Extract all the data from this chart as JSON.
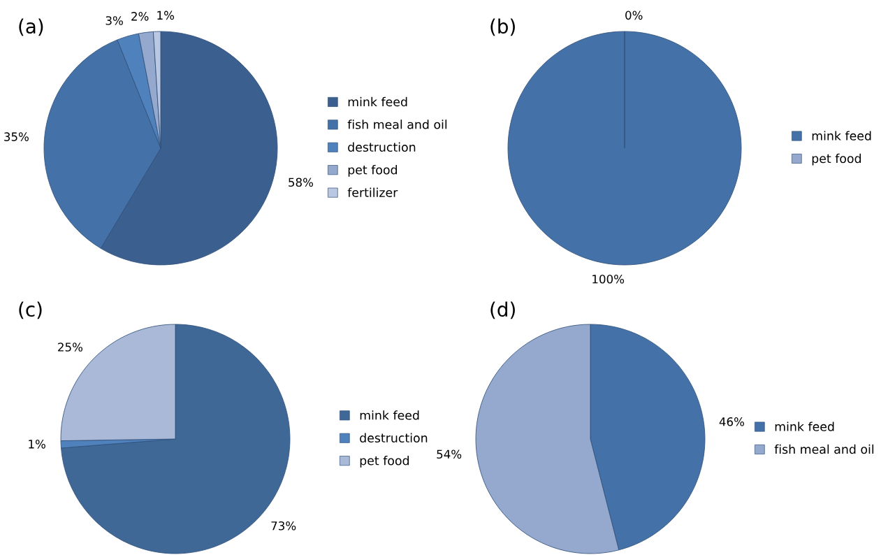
{
  "chart_data": [
    {
      "type": "pie",
      "title": "(a)",
      "categories": [
        "mink feed",
        "fish meal and oil",
        "destruction",
        "pet food",
        "fertilizer"
      ],
      "values": [
        58,
        35,
        3,
        2,
        1
      ],
      "value_labels": [
        "58%",
        "35%",
        "3%",
        "2%",
        "1%"
      ],
      "colors": [
        "#3b5f8e",
        "#4472a8",
        "#4f81bd",
        "#95a9cf",
        "#b9c7e2"
      ],
      "legend": "right"
    },
    {
      "type": "pie",
      "title": "(b)",
      "categories": [
        "mink feed",
        "pet food"
      ],
      "values": [
        100,
        0
      ],
      "value_labels": [
        "100%",
        "0%"
      ],
      "colors": [
        "#4472a8",
        "#95a9cf"
      ],
      "legend": "right"
    },
    {
      "type": "pie",
      "title": "(c)",
      "categories": [
        "mink feed",
        "destruction",
        "pet food"
      ],
      "values": [
        73,
        1,
        25
      ],
      "value_labels": [
        "73%",
        "1%",
        "25%"
      ],
      "colors": [
        "#3f6897",
        "#4f81bd",
        "#aab9d8"
      ],
      "legend": "right"
    },
    {
      "type": "pie",
      "title": "(d)",
      "categories": [
        "mink feed",
        "fish meal and oil"
      ],
      "values": [
        46,
        54
      ],
      "value_labels": [
        "46%",
        "54%"
      ],
      "colors": [
        "#4472a8",
        "#95a9cf"
      ],
      "legend": "right"
    }
  ]
}
